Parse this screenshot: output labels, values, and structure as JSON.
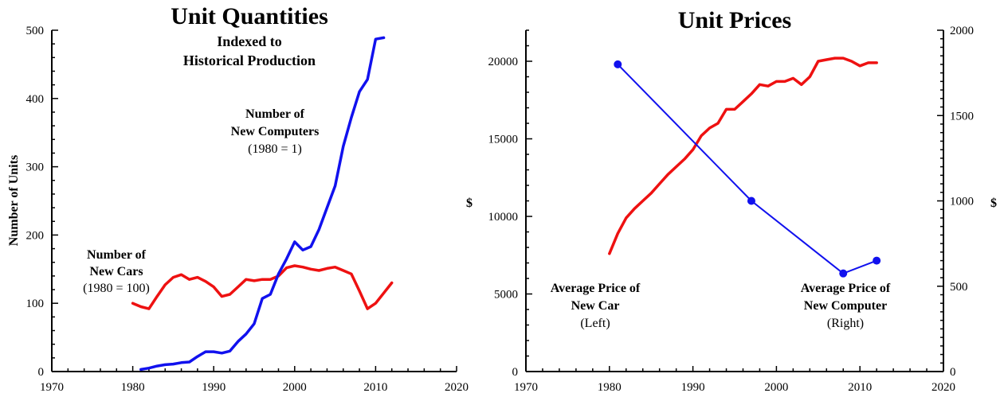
{
  "colors": {
    "red": "#ee1111",
    "blue": "#1111ee",
    "axis": "#000000"
  },
  "chart_data": [
    {
      "type": "line",
      "title": "Unit Quantities",
      "subtitle": [
        "Indexed to",
        "Historical Production"
      ],
      "xlabel": "",
      "ylabel": "Number of Units",
      "xlim": [
        1970,
        2020
      ],
      "ylim": [
        0,
        500
      ],
      "xticks": [
        "1970",
        "1980",
        "1990",
        "2000",
        "2010",
        "2020"
      ],
      "yticks": [
        "0",
        "100",
        "200",
        "300",
        "400",
        "500"
      ],
      "grid": false,
      "series": [
        {
          "color": "#ee1111",
          "label_lines": [
            "Number of",
            "New Cars",
            "(1980 = 100)"
          ],
          "x": [
            1980,
            1981,
            1982,
            1983,
            1984,
            1985,
            1986,
            1987,
            1988,
            1989,
            1990,
            1991,
            1992,
            1993,
            1994,
            1995,
            1996,
            1997,
            1998,
            1999,
            2000,
            2001,
            2002,
            2003,
            2004,
            2005,
            2006,
            2007,
            2008,
            2009,
            2010,
            2011,
            2012
          ],
          "y": [
            100,
            95,
            92,
            110,
            127,
            138,
            142,
            135,
            138,
            132,
            124,
            110,
            113,
            124,
            135,
            133,
            135,
            135,
            140,
            152,
            155,
            153,
            150,
            148,
            151,
            153,
            148,
            143,
            118,
            92,
            100,
            115,
            130
          ]
        },
        {
          "color": "#1111ee",
          "label_lines": [
            "Number of",
            "New Computers",
            "(1980 = 1)"
          ],
          "x": [
            1981,
            1982,
            1983,
            1984,
            1985,
            1986,
            1987,
            1988,
            1989,
            1990,
            1991,
            1992,
            1993,
            1994,
            1995,
            1996,
            1997,
            1998,
            1999,
            2000,
            2001,
            2002,
            2003,
            2004,
            2005,
            2006,
            2007,
            2008,
            2009,
            2010,
            2011
          ],
          "y": [
            3,
            5,
            8,
            10,
            11,
            13,
            14,
            22,
            29,
            29,
            27,
            30,
            44,
            55,
            70,
            107,
            113,
            143,
            165,
            190,
            178,
            183,
            208,
            240,
            272,
            330,
            372,
            410,
            428,
            487,
            489
          ]
        }
      ]
    },
    {
      "type": "line",
      "title": "Unit Prices",
      "xlabel": "",
      "ylabel": "$",
      "ylabel_right": "$",
      "xlim": [
        1970,
        2020
      ],
      "ylim": [
        0,
        22000
      ],
      "ylim_right": [
        0,
        2000
      ],
      "xticks": [
        "1970",
        "1980",
        "1990",
        "2000",
        "2010",
        "2020"
      ],
      "yticks": [
        "0",
        "5000",
        "10000",
        "15000",
        "20000"
      ],
      "yticks_right": [
        "0",
        "500",
        "1000",
        "1500",
        "2000"
      ],
      "grid": false,
      "series": [
        {
          "color": "#ee1111",
          "axis": "left",
          "label_lines": [
            "Average Price  of",
            "New Car",
            "(Left)"
          ],
          "x": [
            1980,
            1981,
            1982,
            1983,
            1984,
            1985,
            1986,
            1987,
            1988,
            1989,
            1990,
            1991,
            1992,
            1993,
            1994,
            1995,
            1996,
            1997,
            1998,
            1999,
            2000,
            2001,
            2002,
            2003,
            2004,
            2005,
            2006,
            2007,
            2008,
            2009,
            2010,
            2011,
            2012
          ],
          "y": [
            7600,
            8900,
            9900,
            10500,
            11000,
            11500,
            12100,
            12700,
            13200,
            13700,
            14300,
            15200,
            15700,
            16000,
            16900,
            16900,
            17400,
            17900,
            18500,
            18400,
            18700,
            18700,
            18900,
            18500,
            19000,
            20000,
            20100,
            20200,
            20200,
            20000,
            19700,
            19900,
            19900
          ]
        },
        {
          "color": "#1111ee",
          "axis": "right",
          "markers": true,
          "label_lines": [
            "Average Price of",
            "New Computer",
            "(Right)"
          ],
          "x": [
            1981,
            1997,
            2008,
            2012
          ],
          "y": [
            1800,
            1000,
            575,
            650
          ]
        }
      ]
    }
  ]
}
